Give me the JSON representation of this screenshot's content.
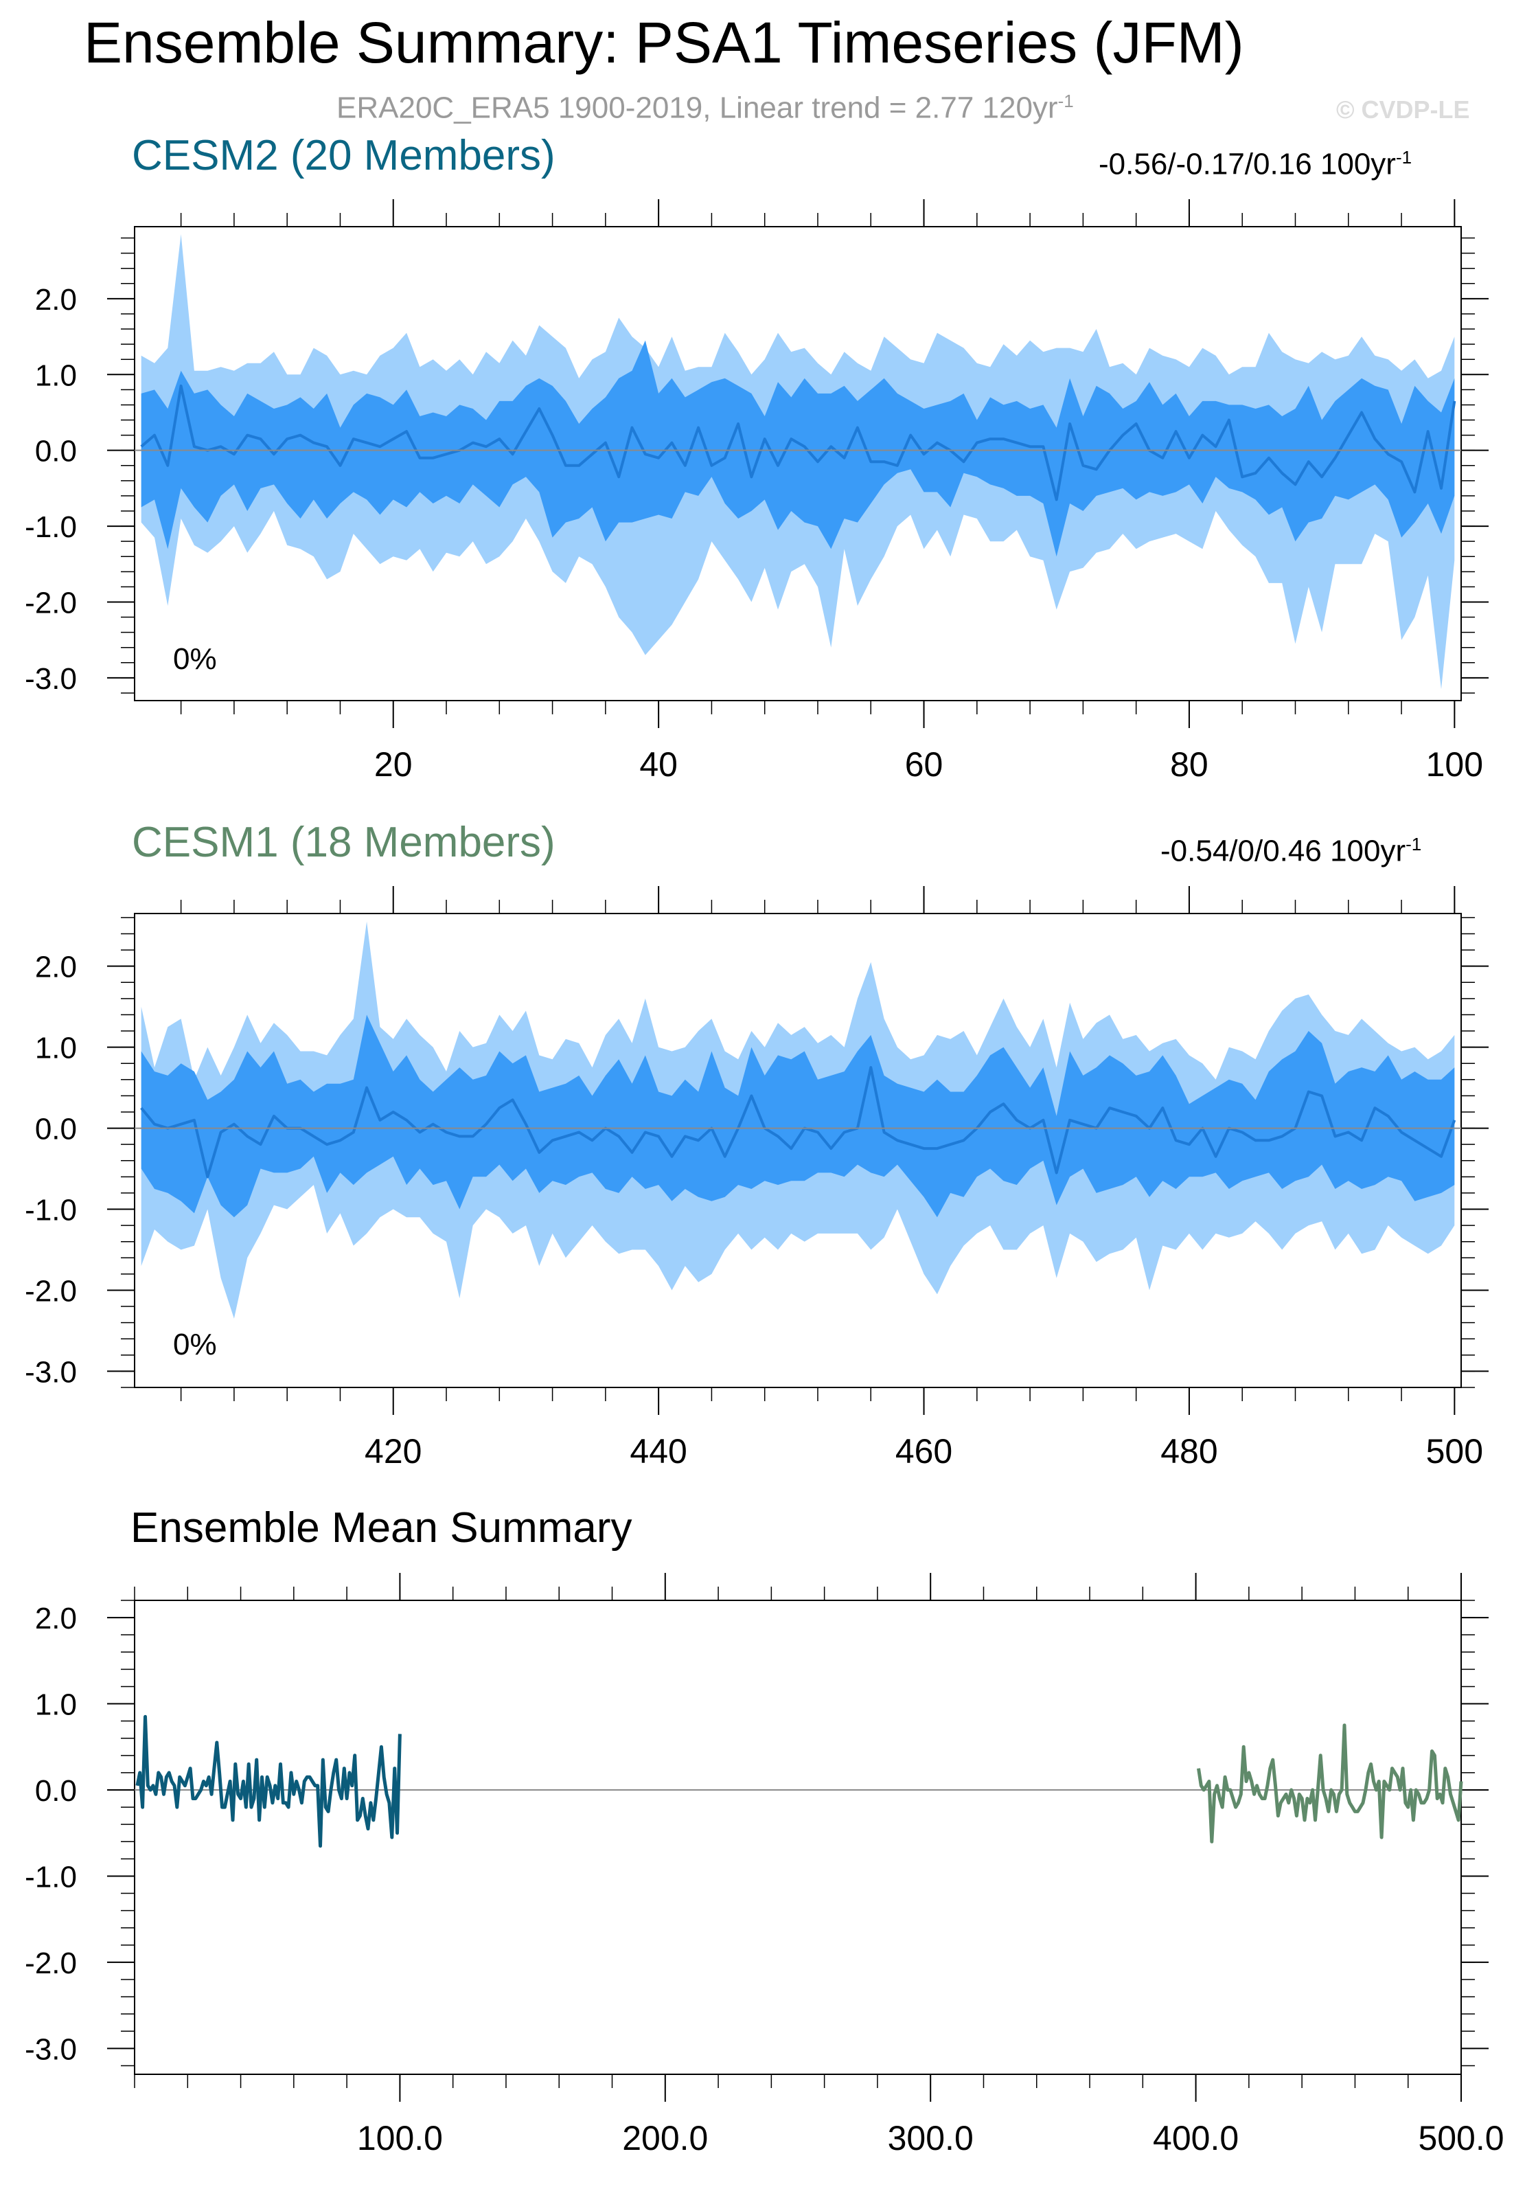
{
  "header": {
    "title": "Ensemble Summary: PSA1 Timeseries (JFM)",
    "subtitle_text": "ERA20C_ERA5 1900-2019, Linear trend = 2.77 120yr",
    "subtitle_exp": "-1",
    "credit": "© CVDP-LE"
  },
  "colors": {
    "cesm2_title": "#0b6684",
    "cesm1_title": "#5f8a6a",
    "band_outer": "#9fd0fc",
    "band_inner": "#3a9bf7",
    "mean_line": "#1e7ad6",
    "em_cesm2": "#0b5b7a",
    "em_cesm1": "#5f8a6a",
    "zero_line": "#8a8a8a"
  },
  "chart_data": [
    {
      "type": "area",
      "title": "CESM2 (20 Members)",
      "trend_text": "-0.56/-0.17/0.16 100yr",
      "trend_exp": "-1",
      "percent_text": "0%",
      "x_start": 1,
      "x_end": 100,
      "xlim": [
        0.5,
        100.5
      ],
      "ylim": [
        -3.3,
        2.95
      ],
      "x_ticks": [
        20,
        40,
        60,
        80,
        100
      ],
      "y_ticks": [
        2.0,
        1.0,
        0.0,
        -1.0,
        -2.0,
        -3.0
      ],
      "y_tick_labels": [
        "2.0",
        "1.0",
        "0.0",
        "-1.0",
        "-2.0",
        "-3.0"
      ],
      "min": [
        -0.95,
        -1.15,
        -2.05,
        -0.9,
        -1.25,
        -1.35,
        -1.2,
        -1.0,
        -1.35,
        -1.1,
        -0.8,
        -1.25,
        -1.3,
        -1.4,
        -1.7,
        -1.6,
        -1.1,
        -1.3,
        -1.5,
        -1.4,
        -1.45,
        -1.3,
        -1.6,
        -1.35,
        -1.4,
        -1.2,
        -1.5,
        -1.4,
        -1.2,
        -0.9,
        -1.2,
        -1.6,
        -1.75,
        -1.4,
        -1.5,
        -1.8,
        -2.2,
        -2.4,
        -2.7,
        -2.5,
        -2.3,
        -2.0,
        -1.7,
        -1.2,
        -1.45,
        -1.7,
        -2.0,
        -1.55,
        -2.1,
        -1.6,
        -1.5,
        -1.8,
        -2.6,
        -1.3,
        -2.05,
        -1.7,
        -1.4,
        -1.0,
        -0.85,
        -1.3,
        -1.05,
        -1.4,
        -0.85,
        -0.9,
        -1.2,
        -1.2,
        -1.05,
        -1.4,
        -1.45,
        -2.1,
        -1.6,
        -1.55,
        -1.35,
        -1.3,
        -1.1,
        -1.3,
        -1.2,
        -1.15,
        -1.1,
        -1.2,
        -1.3,
        -0.8,
        -1.05,
        -1.25,
        -1.4,
        -1.75,
        -1.75,
        -2.55,
        -1.8,
        -2.4,
        -1.5,
        -1.5,
        -1.5,
        -1.1,
        -1.2,
        -2.5,
        -2.2,
        -1.65,
        -3.15,
        -1.45
      ],
      "p10": [
        -0.75,
        -0.65,
        -1.3,
        -0.5,
        -0.75,
        -0.95,
        -0.6,
        -0.45,
        -0.8,
        -0.5,
        -0.45,
        -0.7,
        -0.9,
        -0.65,
        -0.9,
        -0.7,
        -0.55,
        -0.65,
        -0.85,
        -0.65,
        -0.75,
        -0.55,
        -0.7,
        -0.6,
        -0.7,
        -0.45,
        -0.6,
        -0.75,
        -0.45,
        -0.35,
        -0.55,
        -1.15,
        -0.95,
        -0.9,
        -0.75,
        -1.2,
        -0.95,
        -0.95,
        -0.9,
        -0.85,
        -0.9,
        -0.55,
        -0.6,
        -0.35,
        -0.7,
        -0.9,
        -0.8,
        -0.65,
        -1.05,
        -0.8,
        -0.95,
        -1.0,
        -1.3,
        -0.9,
        -0.95,
        -0.7,
        -0.45,
        -0.3,
        -0.25,
        -0.55,
        -0.55,
        -0.75,
        -0.3,
        -0.35,
        -0.45,
        -0.5,
        -0.6,
        -0.6,
        -0.7,
        -1.4,
        -0.7,
        -0.8,
        -0.6,
        -0.55,
        -0.5,
        -0.65,
        -0.55,
        -0.6,
        -0.55,
        -0.45,
        -0.7,
        -0.35,
        -0.5,
        -0.55,
        -0.65,
        -0.85,
        -0.75,
        -1.2,
        -0.95,
        -0.9,
        -0.6,
        -0.65,
        -0.55,
        -0.45,
        -0.65,
        -1.15,
        -0.95,
        -0.7,
        -1.1,
        -0.6
      ],
      "mean": [
        0.05,
        0.2,
        -0.2,
        0.85,
        0.05,
        0.0,
        0.05,
        -0.05,
        0.2,
        0.15,
        -0.05,
        0.15,
        0.2,
        0.1,
        0.05,
        -0.2,
        0.15,
        0.1,
        0.05,
        0.15,
        0.25,
        -0.1,
        -0.1,
        -0.05,
        0.0,
        0.1,
        0.05,
        0.15,
        -0.05,
        0.25,
        0.55,
        0.2,
        -0.2,
        -0.2,
        -0.05,
        0.1,
        -0.35,
        0.3,
        -0.05,
        -0.1,
        0.1,
        -0.2,
        0.3,
        -0.2,
        -0.1,
        0.35,
        -0.35,
        0.15,
        -0.2,
        0.15,
        0.05,
        -0.15,
        0.05,
        -0.1,
        0.3,
        -0.15,
        -0.15,
        -0.2,
        0.2,
        -0.05,
        0.1,
        0.0,
        -0.15,
        0.1,
        0.15,
        0.15,
        0.1,
        0.05,
        0.05,
        -0.65,
        0.35,
        -0.2,
        -0.25,
        0.0,
        0.2,
        0.35,
        0.0,
        -0.1,
        0.25,
        -0.1,
        0.2,
        0.05,
        0.4,
        -0.35,
        -0.3,
        -0.1,
        -0.3,
        -0.45,
        -0.15,
        -0.35,
        -0.1,
        0.2,
        0.5,
        0.15,
        -0.05,
        -0.15,
        -0.55,
        0.25,
        -0.5,
        0.65
      ],
      "p90": [
        0.75,
        0.8,
        0.55,
        1.05,
        0.75,
        0.8,
        0.6,
        0.45,
        0.75,
        0.65,
        0.55,
        0.6,
        0.7,
        0.55,
        0.75,
        0.3,
        0.6,
        0.75,
        0.7,
        0.6,
        0.8,
        0.45,
        0.5,
        0.45,
        0.6,
        0.55,
        0.4,
        0.65,
        0.65,
        0.85,
        0.95,
        0.85,
        0.65,
        0.35,
        0.55,
        0.7,
        0.95,
        1.05,
        1.45,
        0.75,
        0.95,
        0.7,
        0.8,
        0.9,
        0.95,
        0.85,
        0.75,
        0.45,
        0.9,
        0.7,
        0.95,
        0.75,
        0.75,
        0.85,
        0.65,
        0.8,
        0.95,
        0.75,
        0.65,
        0.55,
        0.6,
        0.65,
        0.75,
        0.4,
        0.7,
        0.6,
        0.65,
        0.55,
        0.6,
        0.3,
        0.95,
        0.45,
        0.85,
        0.75,
        0.55,
        0.65,
        0.9,
        0.6,
        0.75,
        0.45,
        0.65,
        0.65,
        0.6,
        0.6,
        0.55,
        0.6,
        0.45,
        0.55,
        0.85,
        0.4,
        0.65,
        0.8,
        0.95,
        0.85,
        0.8,
        0.35,
        0.85,
        0.65,
        0.5,
        0.95
      ],
      "max": [
        1.25,
        1.15,
        1.35,
        2.85,
        1.05,
        1.05,
        1.1,
        1.05,
        1.15,
        1.15,
        1.3,
        1.0,
        1.0,
        1.35,
        1.25,
        1.0,
        1.05,
        1.0,
        1.25,
        1.35,
        1.55,
        1.1,
        1.2,
        1.05,
        1.2,
        1.0,
        1.3,
        1.15,
        1.45,
        1.25,
        1.65,
        1.5,
        1.35,
        0.95,
        1.2,
        1.3,
        1.75,
        1.5,
        1.35,
        1.1,
        1.5,
        1.05,
        1.1,
        1.1,
        1.55,
        1.3,
        1.0,
        1.2,
        1.55,
        1.3,
        1.35,
        1.15,
        1.0,
        1.3,
        1.15,
        1.05,
        1.5,
        1.35,
        1.2,
        1.15,
        1.55,
        1.45,
        1.35,
        1.15,
        1.1,
        1.4,
        1.25,
        1.45,
        1.3,
        1.35,
        1.35,
        1.3,
        1.6,
        1.1,
        1.15,
        1.0,
        1.35,
        1.25,
        1.2,
        1.1,
        1.35,
        1.25,
        1.0,
        1.1,
        1.1,
        1.55,
        1.3,
        1.2,
        1.15,
        1.3,
        1.2,
        1.25,
        1.5,
        1.25,
        1.2,
        1.05,
        1.2,
        0.95,
        1.05,
        1.5
      ]
    },
    {
      "type": "area",
      "title": "CESM1 (18 Members)",
      "trend_text": "-0.54/0/0.46 100yr",
      "trend_exp": "-1",
      "percent_text": "0%",
      "x_start": 401,
      "x_end": 500,
      "xlim": [
        400.5,
        500.5
      ],
      "ylim": [
        -3.2,
        2.65
      ],
      "x_ticks": [
        420,
        440,
        460,
        480,
        500
      ],
      "y_ticks": [
        2.0,
        1.0,
        0.0,
        -1.0,
        -2.0,
        -3.0
      ],
      "y_tick_labels": [
        "2.0",
        "1.0",
        "0.0",
        "-1.0",
        "-2.0",
        "-3.0"
      ],
      "min": [
        -1.7,
        -1.25,
        -1.4,
        -1.5,
        -1.45,
        -1.0,
        -1.85,
        -2.35,
        -1.6,
        -1.3,
        -0.95,
        -1.0,
        -0.85,
        -0.7,
        -1.3,
        -1.05,
        -1.45,
        -1.3,
        -1.1,
        -1.0,
        -1.1,
        -1.1,
        -1.3,
        -1.4,
        -2.1,
        -1.2,
        -1.0,
        -1.1,
        -1.3,
        -1.2,
        -1.7,
        -1.3,
        -1.6,
        -1.4,
        -1.2,
        -1.4,
        -1.55,
        -1.5,
        -1.5,
        -1.7,
        -2.0,
        -1.7,
        -1.9,
        -1.8,
        -1.5,
        -1.3,
        -1.5,
        -1.35,
        -1.5,
        -1.3,
        -1.4,
        -1.3,
        -1.3,
        -1.3,
        -1.3,
        -1.5,
        -1.35,
        -1.0,
        -1.4,
        -1.8,
        -2.05,
        -1.7,
        -1.45,
        -1.3,
        -1.2,
        -1.5,
        -1.5,
        -1.3,
        -1.2,
        -1.85,
        -1.3,
        -1.4,
        -1.65,
        -1.55,
        -1.5,
        -1.35,
        -2.0,
        -1.45,
        -1.5,
        -1.3,
        -1.5,
        -1.3,
        -1.35,
        -1.3,
        -1.15,
        -1.3,
        -1.5,
        -1.3,
        -1.2,
        -1.15,
        -1.5,
        -1.3,
        -1.55,
        -1.5,
        -1.2,
        -1.35,
        -1.45,
        -1.55,
        -1.45,
        -1.2
      ],
      "p10": [
        -0.5,
        -0.75,
        -0.8,
        -0.9,
        -1.05,
        -0.6,
        -0.95,
        -1.1,
        -0.95,
        -0.5,
        -0.55,
        -0.55,
        -0.5,
        -0.35,
        -0.8,
        -0.55,
        -0.7,
        -0.55,
        -0.45,
        -0.35,
        -0.7,
        -0.5,
        -0.7,
        -0.65,
        -1.0,
        -0.6,
        -0.6,
        -0.45,
        -0.65,
        -0.5,
        -0.8,
        -0.65,
        -0.7,
        -0.6,
        -0.55,
        -0.75,
        -0.8,
        -0.6,
        -0.75,
        -0.7,
        -0.9,
        -0.75,
        -0.85,
        -0.9,
        -0.85,
        -0.7,
        -0.75,
        -0.65,
        -0.7,
        -0.65,
        -0.65,
        -0.55,
        -0.55,
        -0.6,
        -0.45,
        -0.55,
        -0.6,
        -0.45,
        -0.65,
        -0.85,
        -1.1,
        -0.8,
        -0.85,
        -0.6,
        -0.5,
        -0.65,
        -0.7,
        -0.5,
        -0.4,
        -0.95,
        -0.6,
        -0.5,
        -0.8,
        -0.75,
        -0.7,
        -0.6,
        -0.85,
        -0.65,
        -0.75,
        -0.6,
        -0.6,
        -0.55,
        -0.75,
        -0.65,
        -0.6,
        -0.55,
        -0.75,
        -0.65,
        -0.6,
        -0.45,
        -0.75,
        -0.65,
        -0.75,
        -0.7,
        -0.6,
        -0.65,
        -0.9,
        -0.85,
        -0.8,
        -0.7
      ],
      "mean": [
        0.25,
        0.05,
        0.0,
        0.05,
        0.1,
        -0.6,
        -0.05,
        0.05,
        -0.1,
        -0.2,
        0.15,
        0.0,
        0.0,
        -0.1,
        -0.2,
        -0.15,
        -0.05,
        0.5,
        0.1,
        0.2,
        0.1,
        -0.05,
        0.05,
        -0.05,
        -0.1,
        -0.1,
        0.05,
        0.25,
        0.35,
        0.05,
        -0.3,
        -0.15,
        -0.1,
        -0.05,
        -0.15,
        0.0,
        -0.1,
        -0.3,
        -0.05,
        -0.1,
        -0.35,
        -0.1,
        -0.15,
        0.0,
        -0.35,
        0.0,
        0.4,
        0.0,
        -0.1,
        -0.25,
        0.0,
        -0.05,
        -0.25,
        -0.05,
        0.0,
        0.75,
        -0.05,
        -0.15,
        -0.2,
        -0.25,
        -0.25,
        -0.2,
        -0.15,
        0.0,
        0.2,
        0.3,
        0.1,
        0.0,
        0.1,
        -0.55,
        0.1,
        0.05,
        0.0,
        0.25,
        0.2,
        0.15,
        0.0,
        0.25,
        -0.15,
        -0.2,
        0.0,
        -0.35,
        0.0,
        -0.05,
        -0.15,
        -0.15,
        -0.1,
        0.0,
        0.45,
        0.4,
        -0.1,
        -0.05,
        -0.15,
        0.25,
        0.15,
        -0.05,
        -0.15,
        -0.25,
        -0.35,
        0.1
      ],
      "p90": [
        0.95,
        0.7,
        0.65,
        0.8,
        0.7,
        0.35,
        0.45,
        0.6,
        0.95,
        0.75,
        0.95,
        0.55,
        0.6,
        0.45,
        0.55,
        0.55,
        0.6,
        1.4,
        1.05,
        0.7,
        0.9,
        0.6,
        0.45,
        0.6,
        0.75,
        0.6,
        0.65,
        0.95,
        0.8,
        0.9,
        0.45,
        0.5,
        0.55,
        0.65,
        0.4,
        0.65,
        0.85,
        0.55,
        0.9,
        0.45,
        0.4,
        0.6,
        0.45,
        0.95,
        0.5,
        0.4,
        1.0,
        0.65,
        0.9,
        0.85,
        0.95,
        0.6,
        0.65,
        0.7,
        0.95,
        1.15,
        0.65,
        0.55,
        0.5,
        0.45,
        0.6,
        0.45,
        0.45,
        0.65,
        0.9,
        1.0,
        0.75,
        0.5,
        0.75,
        0.15,
        0.95,
        0.65,
        0.75,
        0.9,
        0.8,
        0.65,
        0.7,
        0.9,
        0.65,
        0.3,
        0.4,
        0.5,
        0.6,
        0.55,
        0.35,
        0.7,
        0.85,
        0.95,
        1.2,
        1.05,
        0.55,
        0.7,
        0.75,
        0.7,
        0.9,
        0.6,
        0.7,
        0.6,
        0.6,
        0.75
      ],
      "max": [
        1.5,
        0.75,
        1.25,
        1.35,
        0.6,
        1.0,
        0.65,
        1.0,
        1.4,
        1.05,
        1.3,
        1.15,
        0.95,
        0.95,
        0.9,
        1.15,
        1.35,
        2.55,
        1.25,
        1.1,
        1.35,
        1.15,
        1.0,
        0.7,
        1.2,
        1.0,
        1.05,
        1.4,
        1.2,
        1.45,
        0.9,
        0.85,
        1.1,
        1.05,
        0.75,
        1.15,
        1.35,
        1.05,
        1.6,
        1.0,
        0.95,
        1.0,
        1.2,
        1.35,
        0.95,
        0.85,
        1.2,
        1.0,
        1.3,
        1.15,
        1.25,
        1.05,
        1.15,
        1.0,
        1.6,
        2.05,
        1.35,
        1.0,
        0.85,
        0.9,
        1.15,
        1.1,
        1.2,
        0.9,
        1.25,
        1.6,
        1.25,
        1.0,
        1.35,
        0.75,
        1.55,
        1.1,
        1.3,
        1.4,
        1.1,
        1.15,
        0.95,
        1.05,
        1.1,
        0.9,
        0.8,
        0.6,
        1.0,
        0.95,
        0.85,
        1.2,
        1.45,
        1.6,
        1.65,
        1.4,
        1.2,
        1.15,
        1.35,
        1.2,
        1.05,
        0.95,
        1.0,
        0.85,
        0.95,
        1.15
      ]
    },
    {
      "type": "line",
      "title": "Ensemble Mean Summary",
      "xlim": [
        0,
        500
      ],
      "ylim": [
        -3.3,
        2.2
      ],
      "x_ticks": [
        100,
        200,
        300,
        400,
        500
      ],
      "x_tick_labels": [
        "100.0",
        "200.0",
        "300.0",
        "400.0",
        "500.0"
      ],
      "y_ticks": [
        2.0,
        1.0,
        0.0,
        -1.0,
        -2.0,
        -3.0
      ],
      "y_tick_labels": [
        "2.0",
        "1.0",
        "0.0",
        "-1.0",
        "-2.0",
        "-3.0"
      ],
      "series_refs": [
        {
          "source_panel": 0,
          "x_start": 1,
          "color_key": "em_cesm2"
        },
        {
          "source_panel": 1,
          "x_start": 401,
          "color_key": "em_cesm1"
        }
      ]
    }
  ]
}
